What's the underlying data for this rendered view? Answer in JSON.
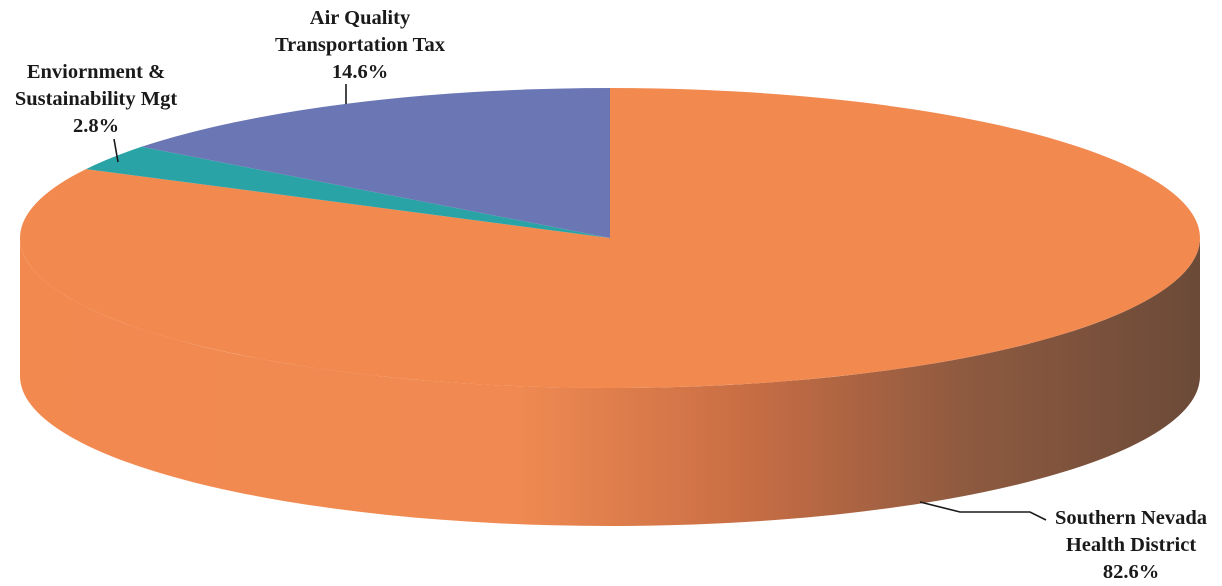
{
  "chart_data": {
    "type": "pie",
    "title": "",
    "style": "3d",
    "slices": [
      {
        "name": "Southern Nevada Health District",
        "label_lines": [
          "Southern Nevada",
          "Health District"
        ],
        "value": 82.6,
        "value_label": "82.6%",
        "color": "#f2894f"
      },
      {
        "name": "Enviornment & Sustainability Mgt",
        "label_lines": [
          "Enviornment &",
          "Sustainability Mgt"
        ],
        "value": 2.8,
        "value_label": "2.8%",
        "color": "#2aa3a6"
      },
      {
        "name": "Air Quality Transportation Tax",
        "label_lines": [
          "Air Quality",
          "Transportation Tax"
        ],
        "value": 14.6,
        "value_label": "14.6%",
        "color": "#6b77b4"
      }
    ]
  },
  "colors": {
    "side_light": "#f2894f",
    "side_dark": "#6b4a38"
  }
}
